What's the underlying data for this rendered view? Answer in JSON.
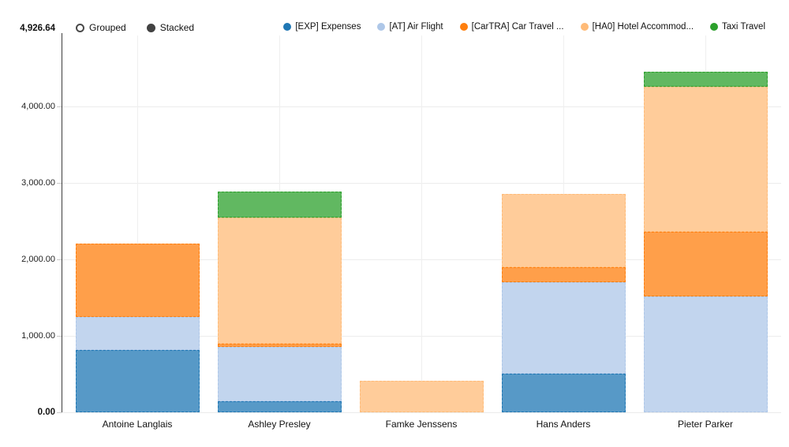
{
  "header": {
    "controls": [
      {
        "label": "Grouped",
        "selected": false
      },
      {
        "label": "Stacked",
        "selected": true
      }
    ]
  },
  "chart_data": {
    "type": "bar",
    "stacked": true,
    "title": "",
    "xlabel": "",
    "ylabel": "",
    "ylim": [
      0,
      4926.64
    ],
    "grid": true,
    "legend_position": "top-right",
    "max_scale_label": "4,926.64",
    "categories": [
      "Antoine Langlais",
      "Ashley Presley",
      "Famke Jenssens",
      "Hans Anders",
      "Pieter Parker"
    ],
    "series": [
      {
        "name": "[EXP] Expenses",
        "color": "#1F77B4",
        "bar_color": "#5799C7",
        "values": [
          810,
          145,
          0,
          500,
          0
        ]
      },
      {
        "name": "[AT] Air Flight",
        "color": "#AEC7E8",
        "bar_color": "#C2D5EE",
        "values": [
          435,
          710,
          0,
          1205,
          1510
        ]
      },
      {
        "name": "[CarTRA] Car Travel ...",
        "color": "#FF7F0E",
        "bar_color": "#FF9F4A",
        "values": [
          960,
          45,
          0,
          195,
          850
        ]
      },
      {
        "name": "[HA0] Hotel Accommod...",
        "color": "#FFBB78",
        "bar_color": "#FFCC9A",
        "values": [
          0,
          1650,
          410,
          960,
          1900
        ]
      },
      {
        "name": "Taxi Travel",
        "color": "#2CA02C",
        "bar_color": "#61B861",
        "values": [
          0,
          340,
          0,
          0,
          195
        ]
      }
    ],
    "totals": [
      2205,
      2890,
      410,
      2860,
      4455
    ],
    "yticks": [
      {
        "label": "0.00",
        "value": 0,
        "bold": true
      },
      {
        "label": "1,000.00",
        "value": 1000,
        "bold": false
      },
      {
        "label": "2,000.00",
        "value": 2000,
        "bold": false
      },
      {
        "label": "3,000.00",
        "value": 3000,
        "bold": false
      },
      {
        "label": "4,000.00",
        "value": 4000,
        "bold": false
      },
      {
        "label": "4,926.64",
        "value": 4926.64,
        "bold": true
      }
    ]
  }
}
